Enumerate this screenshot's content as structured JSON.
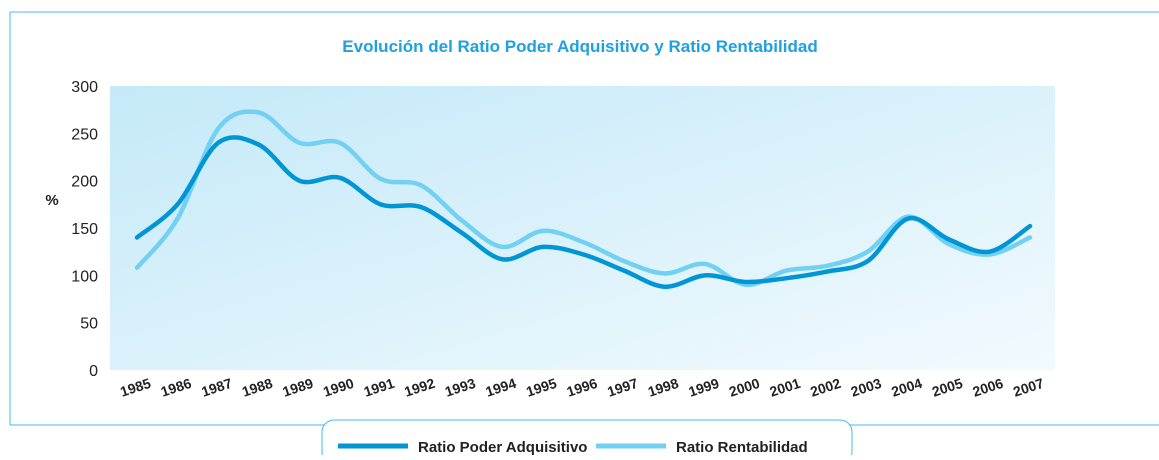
{
  "chart_data": {
    "type": "line",
    "title": "Evolución del Ratio Poder Adquisitivo y Ratio Rentabilidad",
    "y_label": "%",
    "categories": [
      "1985",
      "1986",
      "1987",
      "1988",
      "1989",
      "1990",
      "1991",
      "1992",
      "1993",
      "1994",
      "1995",
      "1996",
      "1997",
      "1998",
      "1999",
      "2000",
      "2001",
      "2002",
      "2003",
      "2004",
      "2005",
      "2006",
      "2007"
    ],
    "series": [
      {
        "name": "Ratio Poder Adquisitivo",
        "color": "#0096d6",
        "values": [
          140,
          175,
          240,
          238,
          200,
          203,
          175,
          172,
          145,
          117,
          130,
          122,
          105,
          88,
          100,
          93,
          97,
          104,
          115,
          160,
          138,
          125,
          152
        ]
      },
      {
        "name": "Ratio Rentabilidad",
        "color": "#72d0f2",
        "values": [
          108,
          160,
          255,
          272,
          240,
          240,
          202,
          195,
          158,
          130,
          147,
          135,
          115,
          102,
          112,
          90,
          105,
          110,
          125,
          162,
          133,
          122,
          140
        ]
      }
    ],
    "ylim": [
      0,
      300
    ],
    "yticks": [
      0,
      50,
      100,
      150,
      200,
      250,
      300
    ]
  }
}
